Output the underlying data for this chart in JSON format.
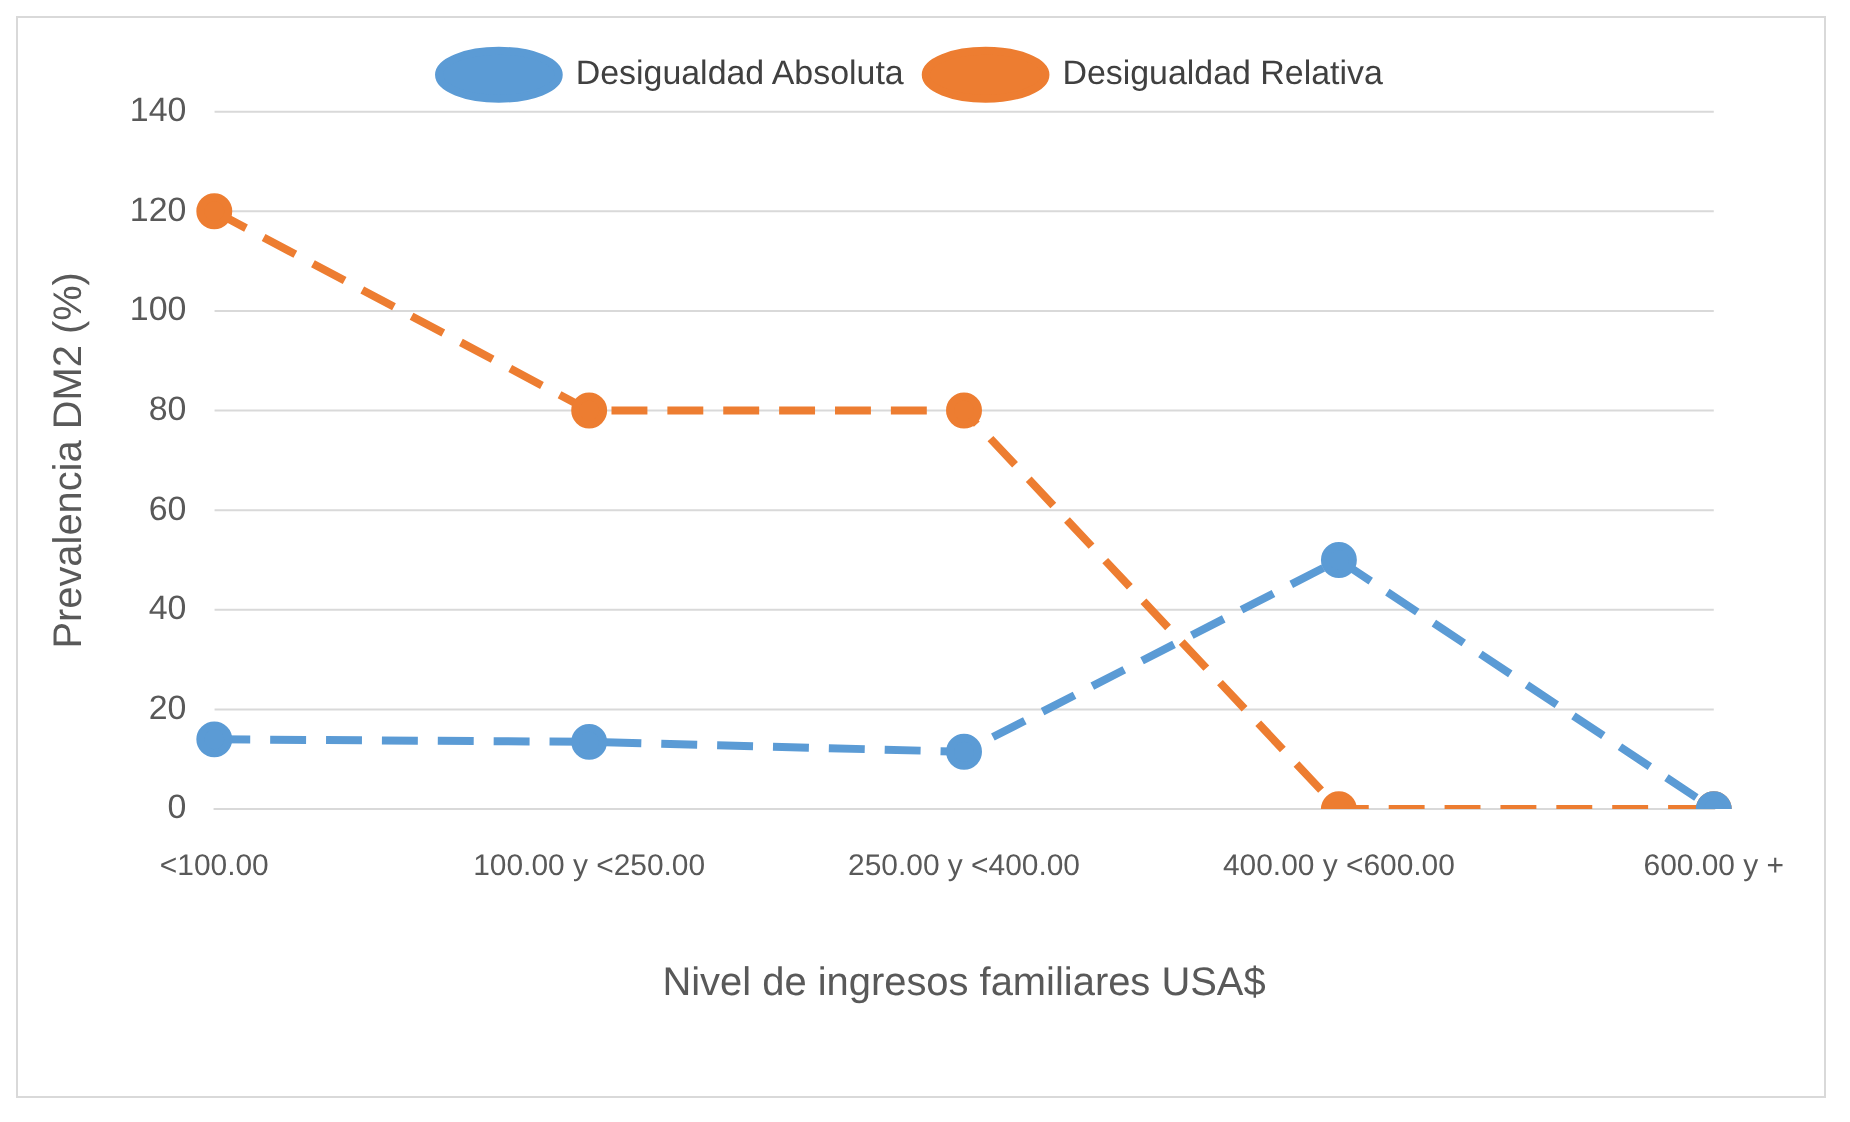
{
  "chart_data": {
    "type": "line",
    "xlabel": "Nivel de ingresos familiares USA$",
    "ylabel": "Prevalencia DM2 (%)",
    "categories": [
      "<100.00",
      "100.00 y <250.00",
      "250.00 y <400.00",
      "400.00 y <600.00",
      "600.00 y +"
    ],
    "series": [
      {
        "name": "Desigualdad Absoluta",
        "color": "#5b9bd5",
        "values": [
          14,
          13.5,
          11.5,
          50,
          0
        ],
        "line_style": "dashed"
      },
      {
        "name": "Desigualdad Relativa",
        "color": "#ed7d31",
        "values": [
          120,
          80,
          80,
          0,
          0
        ],
        "line_style": "dashed"
      }
    ],
    "ylim": [
      0,
      140
    ],
    "yticks": [
      0,
      20,
      40,
      60,
      80,
      100,
      120,
      140
    ],
    "grid": "y",
    "legend": "top",
    "marker": "circle"
  }
}
